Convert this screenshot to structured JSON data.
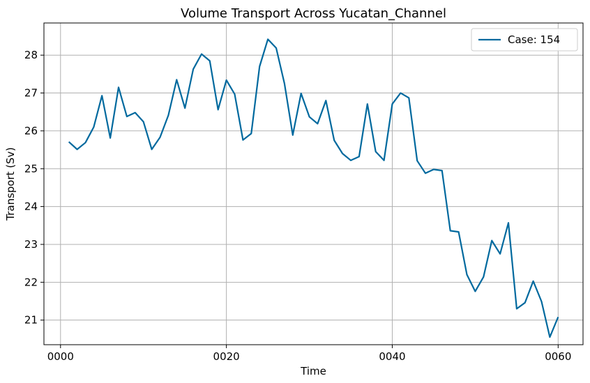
{
  "chart_data": {
    "type": "line",
    "title": "Volume Transport Across Yucatan_Channel",
    "xlabel": "Time",
    "ylabel": "Transport (Sv)",
    "xlim": [
      -2.0,
      63.0
    ],
    "ylim": [
      20.35,
      28.85
    ],
    "x_ticks": [
      {
        "value": 0,
        "label": "0000"
      },
      {
        "value": 20,
        "label": "0020"
      },
      {
        "value": 40,
        "label": "0040"
      },
      {
        "value": 60,
        "label": "0060"
      }
    ],
    "y_ticks": [
      {
        "value": 21,
        "label": "21"
      },
      {
        "value": 22,
        "label": "22"
      },
      {
        "value": 23,
        "label": "23"
      },
      {
        "value": 24,
        "label": "24"
      },
      {
        "value": 25,
        "label": "25"
      },
      {
        "value": 26,
        "label": "26"
      },
      {
        "value": 27,
        "label": "27"
      },
      {
        "value": 28,
        "label": "28"
      }
    ],
    "grid": true,
    "legend_position": "top-right",
    "series": [
      {
        "name": "Case: 154",
        "color": "#00699e",
        "x": [
          1,
          2,
          3,
          4,
          5,
          6,
          7,
          8,
          9,
          10,
          11,
          12,
          13,
          14,
          15,
          16,
          17,
          18,
          19,
          20,
          21,
          22,
          23,
          24,
          25,
          26,
          27,
          28,
          29,
          30,
          31,
          32,
          33,
          34,
          35,
          36,
          37,
          38,
          39,
          40,
          41,
          42,
          43,
          44,
          45,
          46,
          47,
          48,
          49,
          50,
          51,
          52,
          53,
          54,
          55,
          56,
          57,
          58,
          59,
          60
        ],
        "values": [
          25.71,
          25.51,
          25.69,
          26.1,
          26.93,
          25.81,
          27.15,
          26.38,
          26.48,
          26.24,
          25.51,
          25.83,
          26.41,
          27.35,
          26.6,
          27.63,
          28.03,
          27.85,
          26.56,
          27.34,
          26.97,
          25.76,
          25.93,
          27.7,
          28.42,
          28.19,
          27.25,
          25.89,
          26.99,
          26.37,
          26.19,
          26.8,
          25.75,
          25.4,
          25.22,
          25.32,
          26.71,
          25.45,
          25.22,
          26.71,
          27.0,
          26.87,
          25.21,
          24.88,
          24.98,
          24.95,
          23.36,
          23.33,
          22.2,
          21.76,
          22.14,
          23.1,
          22.75,
          23.57,
          21.3,
          21.46,
          22.03,
          21.49,
          20.55,
          21.08
        ]
      }
    ]
  }
}
